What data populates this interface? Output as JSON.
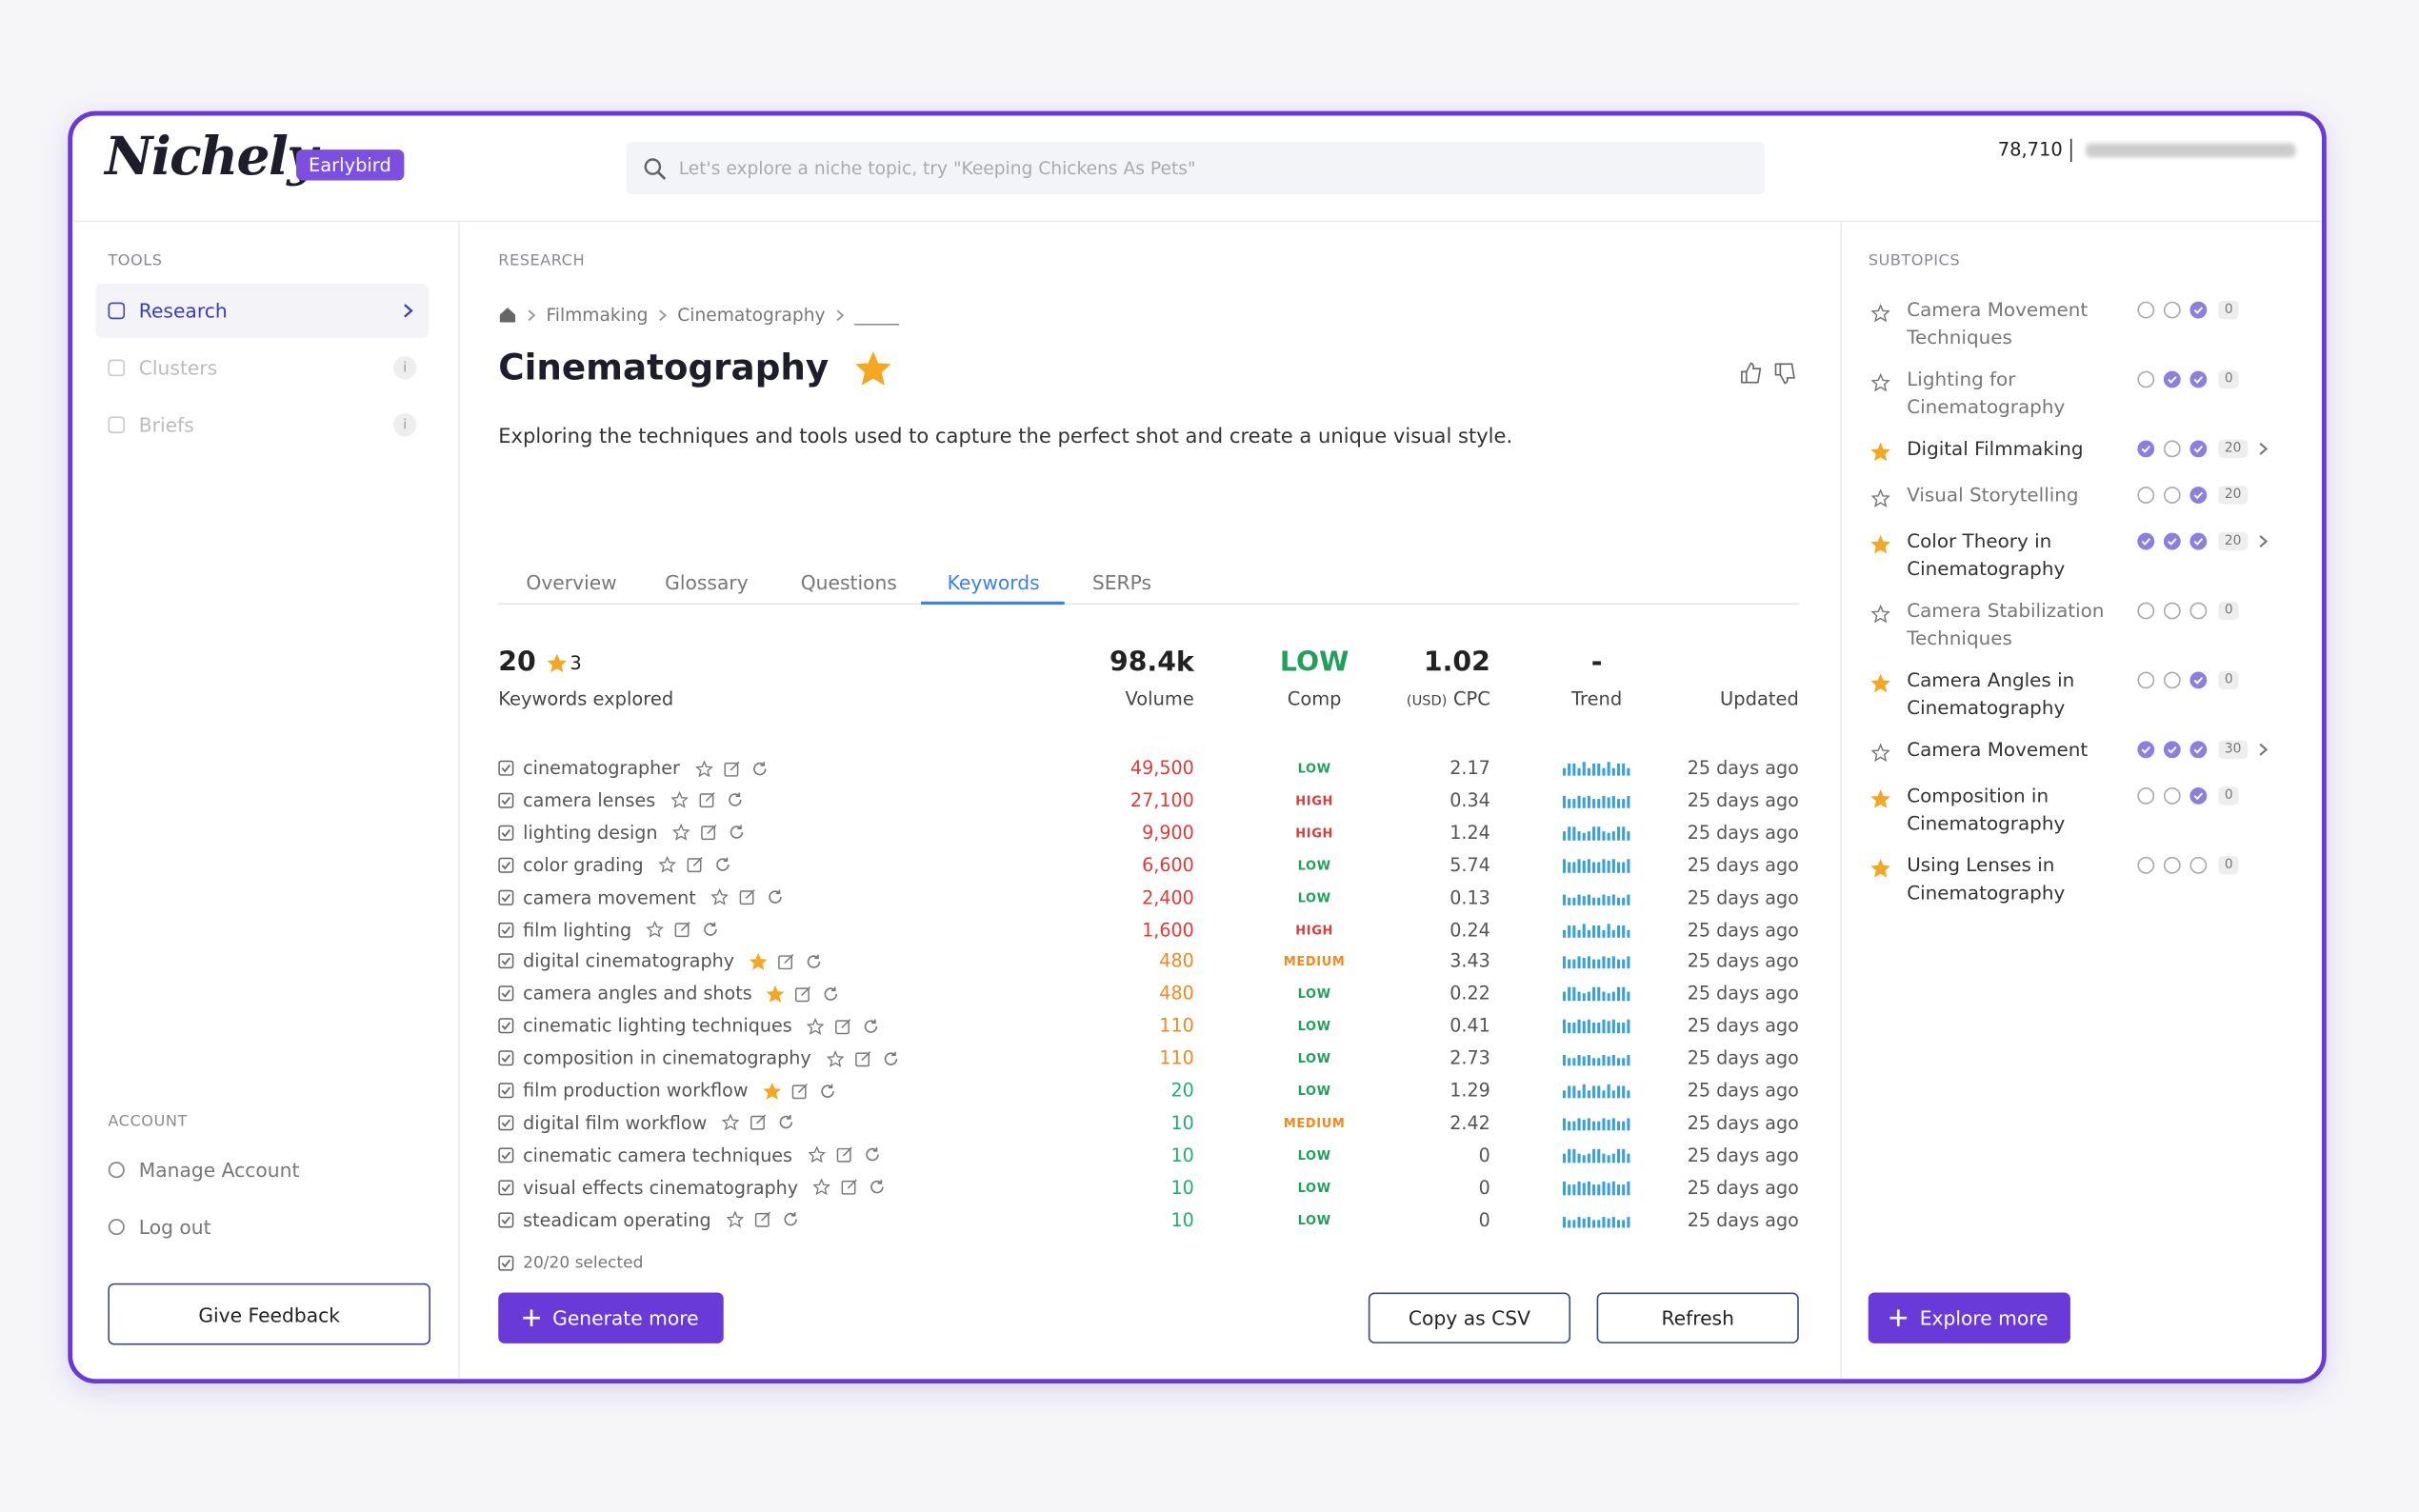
{
  "header": {
    "logo": "Nichely",
    "badge": "Earlybird",
    "search_placeholder": "Let's explore a niche topic, try \"Keeping Chickens As Pets\"",
    "credits": "78,710"
  },
  "sidebar": {
    "tools_heading": "TOOLS",
    "tools": [
      {
        "label": "Research"
      },
      {
        "label": "Clusters",
        "badge": "i"
      },
      {
        "label": "Briefs",
        "badge": "i"
      }
    ],
    "account_heading": "ACCOUNT",
    "account": [
      "Manage Account",
      "Log out"
    ],
    "feedback_button": "Give Feedback"
  },
  "main": {
    "section": "RESEARCH",
    "breadcrumb": [
      "Filmmaking",
      "Cinematography",
      "_____"
    ],
    "title": "Cinematography",
    "description": "Exploring the techniques and tools used to capture the perfect shot and create a unique visual style.",
    "tabs": [
      "Overview",
      "Glossary",
      "Questions",
      "Keywords",
      "SERPs"
    ],
    "summary": {
      "count": "20",
      "starred": "3",
      "count_label": "Keywords explored",
      "volume": "98.4k",
      "volume_label": "Volume",
      "comp": "LOW",
      "comp_label": "Comp",
      "cpc": "1.02",
      "cpc_unit": "(USD)",
      "cpc_label": "CPC",
      "trend": "-",
      "trend_label": "Trend",
      "updated_label": "Updated"
    },
    "keywords": [
      {
        "keyword": "cinematographer",
        "starred": false,
        "volume": "49,500",
        "comp": "LOW",
        "cpc": "2.17",
        "updated": "25 days ago"
      },
      {
        "keyword": "camera lenses",
        "starred": false,
        "volume": "27,100",
        "comp": "HIGH",
        "cpc": "0.34",
        "updated": "25 days ago"
      },
      {
        "keyword": "lighting design",
        "starred": false,
        "volume": "9,900",
        "comp": "HIGH",
        "cpc": "1.24",
        "updated": "25 days ago"
      },
      {
        "keyword": "color grading",
        "starred": false,
        "volume": "6,600",
        "comp": "LOW",
        "cpc": "5.74",
        "updated": "25 days ago"
      },
      {
        "keyword": "camera movement",
        "starred": false,
        "volume": "2,400",
        "comp": "LOW",
        "cpc": "0.13",
        "updated": "25 days ago"
      },
      {
        "keyword": "film lighting",
        "starred": false,
        "volume": "1,600",
        "comp": "HIGH",
        "cpc": "0.24",
        "updated": "25 days ago"
      },
      {
        "keyword": "digital cinematography",
        "starred": true,
        "volume": "480",
        "comp": "MEDIUM",
        "cpc": "3.43",
        "updated": "25 days ago"
      },
      {
        "keyword": "camera angles and shots",
        "starred": true,
        "volume": "480",
        "comp": "LOW",
        "cpc": "0.22",
        "updated": "25 days ago"
      },
      {
        "keyword": "cinematic lighting techniques",
        "starred": false,
        "volume": "110",
        "comp": "LOW",
        "cpc": "0.41",
        "updated": "25 days ago"
      },
      {
        "keyword": "composition in cinematography",
        "starred": false,
        "volume": "110",
        "comp": "LOW",
        "cpc": "2.73",
        "updated": "25 days ago"
      },
      {
        "keyword": "film production workflow",
        "starred": true,
        "volume": "20",
        "comp": "LOW",
        "cpc": "1.29",
        "updated": "25 days ago"
      },
      {
        "keyword": "digital film workflow",
        "starred": false,
        "volume": "10",
        "comp": "MEDIUM",
        "cpc": "2.42",
        "updated": "25 days ago"
      },
      {
        "keyword": "cinematic camera techniques",
        "starred": false,
        "volume": "10",
        "comp": "LOW",
        "cpc": "0",
        "updated": "25 days ago"
      },
      {
        "keyword": "visual effects cinematography",
        "starred": false,
        "volume": "10",
        "comp": "LOW",
        "cpc": "0",
        "updated": "25 days ago"
      },
      {
        "keyword": "steadicam operating",
        "starred": false,
        "volume": "10",
        "comp": "LOW",
        "cpc": "0",
        "updated": "25 days ago"
      }
    ],
    "selected": "20/20 selected",
    "buttons": {
      "generate": "Generate more",
      "copy": "Copy as CSV",
      "refresh": "Refresh"
    }
  },
  "subtopics": {
    "heading": "SUBTOPICS",
    "items": [
      {
        "name": "Camera Movement Techniques",
        "starred": false,
        "checks": [
          false,
          false,
          true
        ],
        "count": "0",
        "expandable": false
      },
      {
        "name": "Lighting for Cinematography",
        "starred": false,
        "checks": [
          false,
          true,
          true
        ],
        "count": "0",
        "expandable": false
      },
      {
        "name": "Digital Filmmaking",
        "starred": true,
        "checks": [
          true,
          false,
          true
        ],
        "count": "20",
        "expandable": true
      },
      {
        "name": "Visual Storytelling",
        "starred": false,
        "checks": [
          false,
          false,
          true
        ],
        "count": "20",
        "expandable": false
      },
      {
        "name": "Color Theory in Cinematography",
        "starred": true,
        "checks": [
          true,
          true,
          true
        ],
        "count": "20",
        "expandable": true
      },
      {
        "name": "Camera Stabilization Techniques",
        "starred": false,
        "checks": [
          false,
          false,
          false
        ],
        "count": "0",
        "expandable": false
      },
      {
        "name": "Camera Angles in Cinematography",
        "starred": true,
        "checks": [
          false,
          false,
          true
        ],
        "count": "0",
        "expandable": false
      },
      {
        "name": "Camera Movement",
        "starred": false,
        "checks": [
          true,
          true,
          true
        ],
        "count": "30",
        "expandable": true
      },
      {
        "name": "Composition in Cinematography",
        "starred": true,
        "checks": [
          false,
          false,
          true
        ],
        "count": "0",
        "expandable": false
      },
      {
        "name": "Using Lenses in Cinematography",
        "starred": true,
        "checks": [
          false,
          false,
          false
        ],
        "count": "0",
        "expandable": false
      }
    ],
    "button": "Explore more"
  }
}
